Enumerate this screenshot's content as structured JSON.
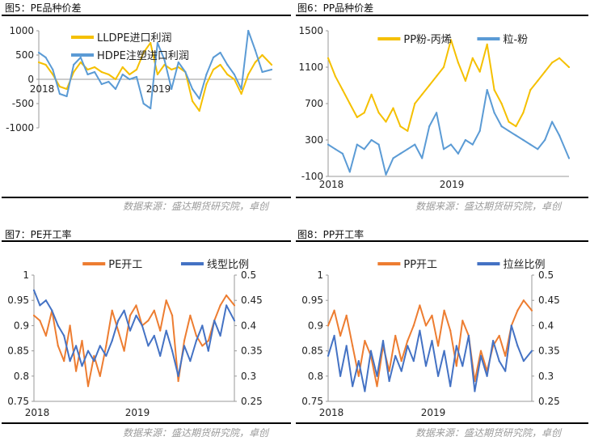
{
  "source_text": "数据来源：盛达期货研究院，卓创",
  "colors": {
    "orange": "#ED7D31",
    "yellow": "#F5C000",
    "blue": "#4472C4",
    "lightblue": "#5B9BD5"
  },
  "chart_data": [
    {
      "id": "c5",
      "type": "line",
      "title": "图5：PE品种价差",
      "x_tick_labels": [
        "2018",
        "2019"
      ],
      "x_tick_positions": [
        0.0,
        0.5
      ],
      "y_ticks": [
        1000,
        500,
        0,
        -500,
        -1000
      ],
      "ylim": [
        -1000,
        1000
      ],
      "legend_position": "top-center",
      "series": [
        {
          "name": "LLDPE进口利润",
          "color": "#F5C000",
          "axis": "left",
          "x": [
            0,
            0.03,
            0.06,
            0.09,
            0.12,
            0.15,
            0.18,
            0.21,
            0.24,
            0.27,
            0.3,
            0.33,
            0.36,
            0.39,
            0.42,
            0.45,
            0.48,
            0.51,
            0.54,
            0.57,
            0.6,
            0.63,
            0.66,
            0.69,
            0.72,
            0.75,
            0.78,
            0.81,
            0.84,
            0.87,
            0.9,
            0.93,
            0.96,
            1.0
          ],
          "values": [
            350,
            300,
            100,
            -150,
            -200,
            150,
            350,
            200,
            250,
            150,
            100,
            0,
            250,
            100,
            200,
            550,
            750,
            100,
            300,
            200,
            250,
            150,
            -450,
            -650,
            -100,
            200,
            300,
            100,
            0,
            -300,
            100,
            350,
            500,
            300
          ]
        },
        {
          "name": "HDPE注塑进口利润",
          "color": "#5B9BD5",
          "axis": "left",
          "x": [
            0,
            0.03,
            0.06,
            0.09,
            0.12,
            0.15,
            0.18,
            0.21,
            0.24,
            0.27,
            0.3,
            0.33,
            0.36,
            0.39,
            0.42,
            0.45,
            0.48,
            0.51,
            0.54,
            0.57,
            0.6,
            0.63,
            0.66,
            0.69,
            0.72,
            0.75,
            0.78,
            0.81,
            0.84,
            0.87,
            0.9,
            0.93,
            0.96,
            1.0
          ],
          "values": [
            550,
            450,
            200,
            -300,
            -350,
            300,
            450,
            100,
            150,
            -100,
            -50,
            -200,
            100,
            0,
            50,
            -500,
            -600,
            750,
            400,
            -200,
            350,
            150,
            -200,
            -400,
            100,
            450,
            550,
            300,
            100,
            -200,
            1000,
            600,
            150,
            200
          ]
        }
      ]
    },
    {
      "id": "c6",
      "type": "line",
      "title": "图6：PP品种价差",
      "x_tick_labels": [
        "2018",
        "2019"
      ],
      "x_tick_positions": [
        0.0,
        0.5
      ],
      "y_ticks": [
        1500,
        1100,
        700,
        300,
        -100
      ],
      "ylim": [
        -100,
        1500
      ],
      "legend_position": "top-center",
      "series": [
        {
          "name": "PP粉-丙烯",
          "color": "#F5C000",
          "axis": "left",
          "x": [
            0,
            0.03,
            0.06,
            0.09,
            0.12,
            0.15,
            0.18,
            0.21,
            0.24,
            0.27,
            0.3,
            0.33,
            0.36,
            0.39,
            0.42,
            0.45,
            0.48,
            0.51,
            0.54,
            0.57,
            0.6,
            0.63,
            0.66,
            0.69,
            0.72,
            0.75,
            0.78,
            0.81,
            0.84,
            0.87,
            0.9,
            0.93,
            0.96,
            1.0
          ],
          "values": [
            1200,
            1000,
            850,
            700,
            550,
            600,
            800,
            600,
            500,
            650,
            450,
            400,
            700,
            800,
            900,
            1000,
            1100,
            1400,
            1150,
            950,
            1200,
            1050,
            1350,
            850,
            700,
            500,
            450,
            600,
            850,
            950,
            1050,
            1150,
            1200,
            1100
          ]
        },
        {
          "name": "粒-粉",
          "color": "#5B9BD5",
          "axis": "left",
          "x": [
            0,
            0.03,
            0.06,
            0.09,
            0.12,
            0.15,
            0.18,
            0.21,
            0.24,
            0.27,
            0.3,
            0.33,
            0.36,
            0.39,
            0.42,
            0.45,
            0.48,
            0.51,
            0.54,
            0.57,
            0.6,
            0.63,
            0.66,
            0.69,
            0.72,
            0.75,
            0.78,
            0.81,
            0.84,
            0.87,
            0.9,
            0.93,
            0.96,
            1.0
          ],
          "values": [
            250,
            200,
            150,
            -50,
            250,
            200,
            300,
            250,
            -80,
            100,
            150,
            200,
            250,
            100,
            450,
            600,
            200,
            250,
            150,
            300,
            250,
            400,
            850,
            600,
            450,
            400,
            350,
            300,
            250,
            200,
            300,
            500,
            350,
            100
          ]
        }
      ]
    },
    {
      "id": "c7",
      "type": "line",
      "title": "图7：PE开工率",
      "x_tick_labels": [
        "2018",
        "2019"
      ],
      "x_tick_positions": [
        0.0,
        0.5
      ],
      "y_ticks": [
        1,
        0.95,
        0.9,
        0.85,
        0.8,
        0.75
      ],
      "ylim": [
        0.75,
        1.0
      ],
      "y2_ticks": [
        0.5,
        0.45,
        0.4,
        0.35,
        0.3,
        0.25
      ],
      "y2lim": [
        0.25,
        0.5
      ],
      "legend_position": "top-center",
      "series": [
        {
          "name": "PE开工",
          "color": "#ED7D31",
          "axis": "left",
          "x": [
            0,
            0.03,
            0.06,
            0.09,
            0.12,
            0.15,
            0.18,
            0.21,
            0.24,
            0.27,
            0.3,
            0.33,
            0.36,
            0.39,
            0.42,
            0.45,
            0.48,
            0.51,
            0.54,
            0.57,
            0.6,
            0.63,
            0.66,
            0.69,
            0.72,
            0.75,
            0.78,
            0.81,
            0.84,
            0.87,
            0.9,
            0.93,
            0.96,
            1.0
          ],
          "values": [
            0.92,
            0.91,
            0.88,
            0.93,
            0.86,
            0.83,
            0.9,
            0.81,
            0.87,
            0.78,
            0.84,
            0.8,
            0.86,
            0.93,
            0.89,
            0.85,
            0.92,
            0.94,
            0.9,
            0.91,
            0.93,
            0.89,
            0.95,
            0.92,
            0.79,
            0.87,
            0.92,
            0.88,
            0.86,
            0.87,
            0.91,
            0.94,
            0.96,
            0.94
          ]
        },
        {
          "name": "线型比例",
          "color": "#4472C4",
          "axis": "right",
          "x": [
            0,
            0.03,
            0.06,
            0.09,
            0.12,
            0.15,
            0.18,
            0.21,
            0.24,
            0.27,
            0.3,
            0.33,
            0.36,
            0.39,
            0.42,
            0.45,
            0.48,
            0.51,
            0.54,
            0.57,
            0.6,
            0.63,
            0.66,
            0.69,
            0.72,
            0.75,
            0.78,
            0.81,
            0.84,
            0.87,
            0.9,
            0.93,
            0.96,
            1.0
          ],
          "values": [
            0.47,
            0.44,
            0.45,
            0.43,
            0.4,
            0.38,
            0.33,
            0.36,
            0.32,
            0.35,
            0.33,
            0.36,
            0.34,
            0.37,
            0.41,
            0.43,
            0.39,
            0.42,
            0.4,
            0.36,
            0.38,
            0.34,
            0.39,
            0.35,
            0.3,
            0.36,
            0.33,
            0.37,
            0.4,
            0.35,
            0.41,
            0.38,
            0.44,
            0.41
          ]
        }
      ]
    },
    {
      "id": "c8",
      "type": "line",
      "title": "图8：PP开工率",
      "x_tick_labels": [
        "2018",
        "2019"
      ],
      "x_tick_positions": [
        0.0,
        0.5
      ],
      "y_ticks": [
        1,
        0.95,
        0.9,
        0.85,
        0.8,
        0.75
      ],
      "ylim": [
        0.75,
        1.0
      ],
      "y2_ticks": [
        0.5,
        0.45,
        0.4,
        0.35,
        0.3,
        0.25
      ],
      "y2lim": [
        0.25,
        0.5
      ],
      "legend_position": "top-center",
      "series": [
        {
          "name": "PP开工",
          "color": "#ED7D31",
          "axis": "left",
          "x": [
            0,
            0.03,
            0.06,
            0.09,
            0.12,
            0.15,
            0.18,
            0.21,
            0.24,
            0.27,
            0.3,
            0.33,
            0.36,
            0.39,
            0.42,
            0.45,
            0.48,
            0.51,
            0.54,
            0.57,
            0.6,
            0.63,
            0.66,
            0.69,
            0.72,
            0.75,
            0.78,
            0.81,
            0.84,
            0.87,
            0.9,
            0.93,
            0.96,
            1.0
          ],
          "values": [
            0.9,
            0.93,
            0.88,
            0.92,
            0.86,
            0.8,
            0.87,
            0.84,
            0.78,
            0.86,
            0.81,
            0.88,
            0.83,
            0.87,
            0.9,
            0.94,
            0.9,
            0.92,
            0.86,
            0.93,
            0.89,
            0.82,
            0.91,
            0.88,
            0.79,
            0.85,
            0.81,
            0.86,
            0.88,
            0.84,
            0.9,
            0.93,
            0.95,
            0.93
          ]
        },
        {
          "name": "拉丝比例",
          "color": "#4472C4",
          "axis": "right",
          "x": [
            0,
            0.03,
            0.06,
            0.09,
            0.12,
            0.15,
            0.18,
            0.21,
            0.24,
            0.27,
            0.3,
            0.33,
            0.36,
            0.39,
            0.42,
            0.45,
            0.48,
            0.51,
            0.54,
            0.57,
            0.6,
            0.63,
            0.66,
            0.69,
            0.72,
            0.75,
            0.78,
            0.81,
            0.84,
            0.87,
            0.9,
            0.93,
            0.96,
            1.0
          ],
          "values": [
            0.34,
            0.38,
            0.3,
            0.36,
            0.28,
            0.33,
            0.27,
            0.35,
            0.3,
            0.37,
            0.29,
            0.34,
            0.31,
            0.36,
            0.33,
            0.39,
            0.32,
            0.37,
            0.3,
            0.35,
            0.28,
            0.36,
            0.32,
            0.38,
            0.27,
            0.34,
            0.3,
            0.37,
            0.33,
            0.31,
            0.4,
            0.36,
            0.33,
            0.35
          ]
        }
      ]
    }
  ]
}
